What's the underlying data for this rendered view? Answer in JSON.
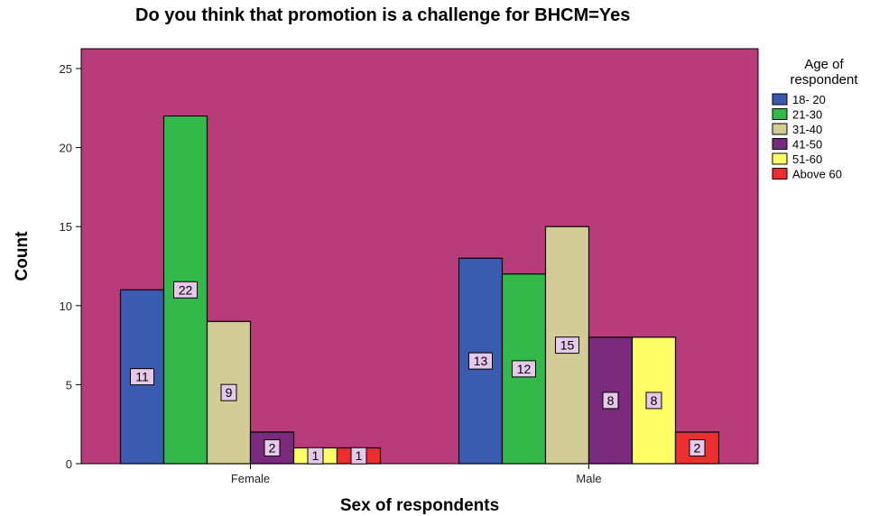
{
  "chart_data": {
    "type": "bar",
    "title": "Do you think that promotion is a challenge for  BHCM=Yes",
    "xlabel": "Sex of respondents",
    "ylabel": "Count",
    "ylim": [
      0,
      25
    ],
    "yticks": [
      0,
      5,
      10,
      15,
      20,
      25
    ],
    "categories": [
      "Female",
      "Male"
    ],
    "legend_title_lines": [
      "Age of",
      "respondent"
    ],
    "legend_position": "right",
    "grid": false,
    "plot_background": "#b83c7a",
    "series": [
      {
        "name": "18- 20",
        "color": "#3b5bb0",
        "values": [
          11,
          13
        ]
      },
      {
        "name": "21-30",
        "color": "#33b84a",
        "values": [
          22,
          12
        ]
      },
      {
        "name": "31-40",
        "color": "#d4cc96",
        "values": [
          9,
          15
        ]
      },
      {
        "name": "41-50",
        "color": "#7a2a7c",
        "values": [
          2,
          8
        ]
      },
      {
        "name": "51-60",
        "color": "#ffff66",
        "values": [
          1,
          8
        ]
      },
      {
        "name": "Above 60",
        "color": "#ee2e2e",
        "values": [
          1,
          2
        ]
      }
    ]
  }
}
